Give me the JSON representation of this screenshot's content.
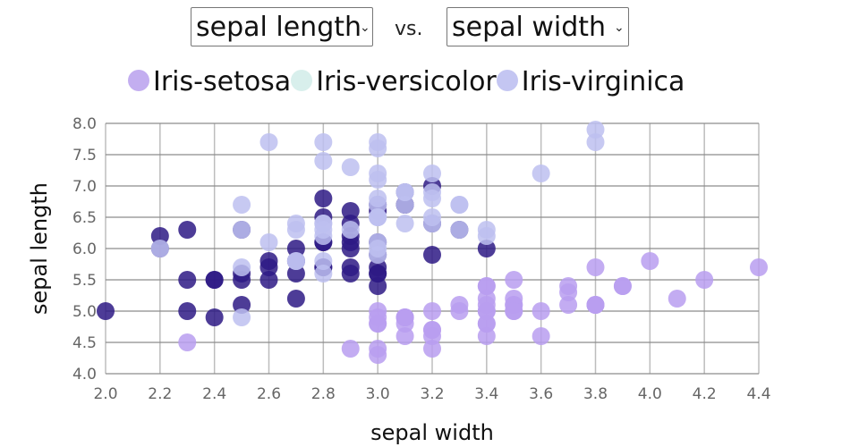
{
  "controls": {
    "y_select": {
      "value": "sepal length",
      "icon": "chevron-down-icon"
    },
    "separator": "vs.",
    "x_select": {
      "value": "sepal width",
      "icon": "chevron-down-icon"
    }
  },
  "legend": [
    {
      "label": "Iris-setosa",
      "color": "#c3aef0"
    },
    {
      "label": "Iris-versicolor",
      "color": "#d8efec"
    },
    {
      "label": "Iris-virginica",
      "color": "#c4c6f2"
    }
  ],
  "chart_data": {
    "type": "scatter",
    "title": "",
    "xlabel": "sepal width",
    "ylabel": "sepal length",
    "xlim": [
      2.0,
      4.4
    ],
    "ylim": [
      4.0,
      8.0
    ],
    "xticks": [
      "2.0",
      "2.2",
      "2.4",
      "2.6",
      "2.8",
      "3.0",
      "3.2",
      "3.4",
      "3.6",
      "3.8",
      "4.0",
      "4.2",
      "4.4"
    ],
    "yticks": [
      "4.0",
      "4.5",
      "5.0",
      "5.5",
      "6.0",
      "6.5",
      "7.0",
      "7.5",
      "8.0"
    ],
    "grid": true,
    "legend_position": "top",
    "series": [
      {
        "name": "Iris-setosa",
        "color": "#b89ef0",
        "points": [
          [
            3.5,
            5.1
          ],
          [
            3.0,
            4.9
          ],
          [
            3.2,
            4.7
          ],
          [
            3.1,
            4.6
          ],
          [
            3.6,
            5.0
          ],
          [
            3.9,
            5.4
          ],
          [
            3.4,
            4.6
          ],
          [
            3.4,
            5.0
          ],
          [
            2.9,
            4.4
          ],
          [
            3.1,
            4.9
          ],
          [
            3.7,
            5.4
          ],
          [
            3.4,
            4.8
          ],
          [
            3.0,
            4.8
          ],
          [
            3.0,
            4.3
          ],
          [
            4.0,
            5.8
          ],
          [
            4.4,
            5.7
          ],
          [
            3.9,
            5.4
          ],
          [
            3.5,
            5.1
          ],
          [
            3.8,
            5.7
          ],
          [
            3.8,
            5.1
          ],
          [
            3.4,
            5.4
          ],
          [
            3.7,
            5.1
          ],
          [
            3.6,
            4.6
          ],
          [
            3.3,
            5.1
          ],
          [
            3.4,
            4.8
          ],
          [
            3.0,
            5.0
          ],
          [
            3.4,
            5.0
          ],
          [
            3.5,
            5.2
          ],
          [
            3.4,
            5.2
          ],
          [
            3.2,
            4.7
          ],
          [
            3.1,
            4.8
          ],
          [
            3.4,
            5.4
          ],
          [
            4.1,
            5.2
          ],
          [
            4.2,
            5.5
          ],
          [
            3.1,
            4.9
          ],
          [
            3.2,
            5.0
          ],
          [
            3.5,
            5.5
          ],
          [
            3.1,
            4.9
          ],
          [
            3.0,
            4.4
          ],
          [
            3.4,
            5.1
          ],
          [
            3.5,
            5.0
          ],
          [
            2.3,
            4.5
          ],
          [
            3.2,
            4.4
          ],
          [
            3.5,
            5.0
          ],
          [
            3.8,
            5.1
          ],
          [
            3.0,
            4.8
          ],
          [
            3.8,
            5.1
          ],
          [
            3.2,
            4.6
          ],
          [
            3.7,
            5.3
          ],
          [
            3.3,
            5.0
          ]
        ]
      },
      {
        "name": "Iris-versicolor",
        "color": "#2e1a85",
        "points": [
          [
            3.2,
            7.0
          ],
          [
            3.2,
            6.4
          ],
          [
            3.1,
            6.9
          ],
          [
            2.3,
            5.5
          ],
          [
            2.8,
            6.5
          ],
          [
            2.8,
            5.7
          ],
          [
            3.3,
            6.3
          ],
          [
            2.4,
            4.9
          ],
          [
            2.9,
            6.6
          ],
          [
            2.7,
            5.2
          ],
          [
            2.0,
            5.0
          ],
          [
            3.0,
            5.9
          ],
          [
            2.2,
            6.0
          ],
          [
            2.9,
            6.1
          ],
          [
            2.9,
            5.6
          ],
          [
            3.1,
            6.7
          ],
          [
            3.0,
            5.6
          ],
          [
            2.7,
            5.8
          ],
          [
            2.2,
            6.2
          ],
          [
            2.5,
            5.6
          ],
          [
            3.2,
            5.9
          ],
          [
            2.8,
            6.1
          ],
          [
            2.5,
            6.3
          ],
          [
            2.8,
            6.1
          ],
          [
            2.9,
            6.4
          ],
          [
            3.0,
            6.6
          ],
          [
            2.8,
            6.8
          ],
          [
            3.0,
            6.7
          ],
          [
            2.9,
            6.0
          ],
          [
            2.6,
            5.7
          ],
          [
            2.4,
            5.5
          ],
          [
            2.4,
            5.5
          ],
          [
            2.7,
            5.8
          ],
          [
            2.7,
            6.0
          ],
          [
            3.0,
            5.4
          ],
          [
            3.4,
            6.0
          ],
          [
            3.1,
            6.7
          ],
          [
            2.3,
            6.3
          ],
          [
            3.0,
            5.6
          ],
          [
            2.5,
            5.5
          ],
          [
            2.6,
            5.5
          ],
          [
            3.0,
            6.1
          ],
          [
            2.6,
            5.8
          ],
          [
            2.3,
            5.0
          ],
          [
            2.7,
            5.6
          ],
          [
            3.0,
            5.7
          ],
          [
            2.9,
            5.7
          ],
          [
            2.9,
            6.2
          ],
          [
            2.5,
            5.1
          ],
          [
            2.8,
            5.7
          ]
        ]
      },
      {
        "name": "Iris-virginica",
        "color": "#bdc0f0",
        "points": [
          [
            3.3,
            6.3
          ],
          [
            2.7,
            5.8
          ],
          [
            3.0,
            7.1
          ],
          [
            2.9,
            6.3
          ],
          [
            3.0,
            6.5
          ],
          [
            3.0,
            7.6
          ],
          [
            2.5,
            4.9
          ],
          [
            2.9,
            7.3
          ],
          [
            2.5,
            6.7
          ],
          [
            3.6,
            7.2
          ],
          [
            3.2,
            6.5
          ],
          [
            2.7,
            6.4
          ],
          [
            3.0,
            6.8
          ],
          [
            2.5,
            5.7
          ],
          [
            2.8,
            5.8
          ],
          [
            3.2,
            6.4
          ],
          [
            3.0,
            6.5
          ],
          [
            3.8,
            7.7
          ],
          [
            2.6,
            7.7
          ],
          [
            2.2,
            6.0
          ],
          [
            3.2,
            6.9
          ],
          [
            2.8,
            5.6
          ],
          [
            2.8,
            7.7
          ],
          [
            2.7,
            6.3
          ],
          [
            3.3,
            6.7
          ],
          [
            3.2,
            7.2
          ],
          [
            2.8,
            6.2
          ],
          [
            3.0,
            6.1
          ],
          [
            2.8,
            6.4
          ],
          [
            3.0,
            7.2
          ],
          [
            2.8,
            7.4
          ],
          [
            3.8,
            7.9
          ],
          [
            2.8,
            6.4
          ],
          [
            2.8,
            6.3
          ],
          [
            2.6,
            6.1
          ],
          [
            3.0,
            7.7
          ],
          [
            3.4,
            6.3
          ],
          [
            3.1,
            6.4
          ],
          [
            3.0,
            6.0
          ],
          [
            3.1,
            6.9
          ],
          [
            3.1,
            6.7
          ],
          [
            3.1,
            6.9
          ],
          [
            2.7,
            5.8
          ],
          [
            3.2,
            6.8
          ],
          [
            3.3,
            6.7
          ],
          [
            3.0,
            6.7
          ],
          [
            2.5,
            6.3
          ],
          [
            3.0,
            6.5
          ],
          [
            3.4,
            6.2
          ],
          [
            3.0,
            5.9
          ]
        ]
      }
    ]
  }
}
